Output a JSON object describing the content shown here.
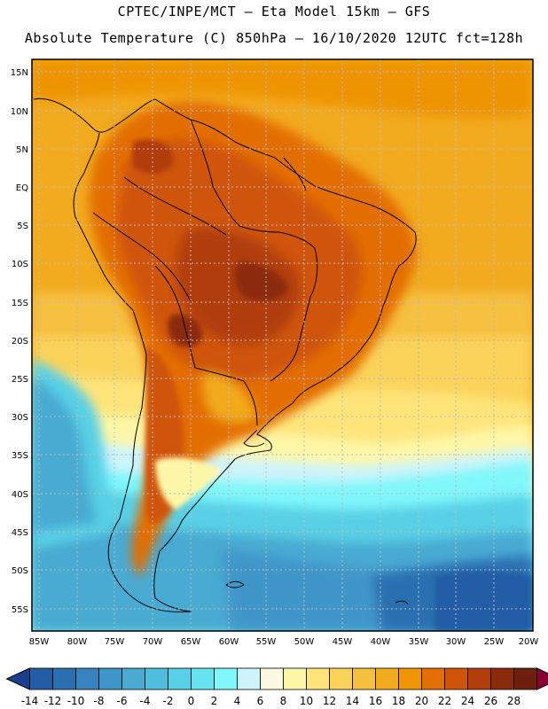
{
  "header": {
    "line1": "CPTEC/INPE/MCT –  Eta Model 15km – GFS",
    "line2": "Absolute Temperature (C) 850hPa – 16/10/2020 12UTC fct=128h"
  },
  "map": {
    "lat_labels": [
      "15N",
      "10N",
      "5N",
      "EQ",
      "5S",
      "10S",
      "15S",
      "20S",
      "25S",
      "30S",
      "35S",
      "40S",
      "45S",
      "50S",
      "55S"
    ],
    "lon_labels": [
      "85W",
      "80W",
      "75W",
      "70W",
      "65W",
      "60W",
      "55W",
      "50W",
      "45W",
      "40W",
      "35W",
      "30W",
      "25W",
      "20W"
    ]
  },
  "colorbar": {
    "labels": [
      "-14",
      "-12",
      "-10",
      "-8",
      "-6",
      "-4",
      "-2",
      "0",
      "2",
      "4",
      "6",
      "8",
      "10",
      "12",
      "14",
      "16",
      "18",
      "20",
      "22",
      "24",
      "26",
      "28"
    ],
    "colors": [
      "#1c3f8c",
      "#245da5",
      "#2c6fb0",
      "#3783bf",
      "#3f96c9",
      "#4aaad2",
      "#4fbedd",
      "#58d0e6",
      "#66e3ee",
      "#7ff7fb",
      "#cdf4fb",
      "#fdf8e2",
      "#fff7a8",
      "#ffe47a",
      "#fbd35a",
      "#f6c03f",
      "#f2aa1f",
      "#ee9405",
      "#e36e06",
      "#cf540a",
      "#b13e0c",
      "#8c2a0c",
      "#6e1f0d",
      "#8b0034"
    ]
  }
}
